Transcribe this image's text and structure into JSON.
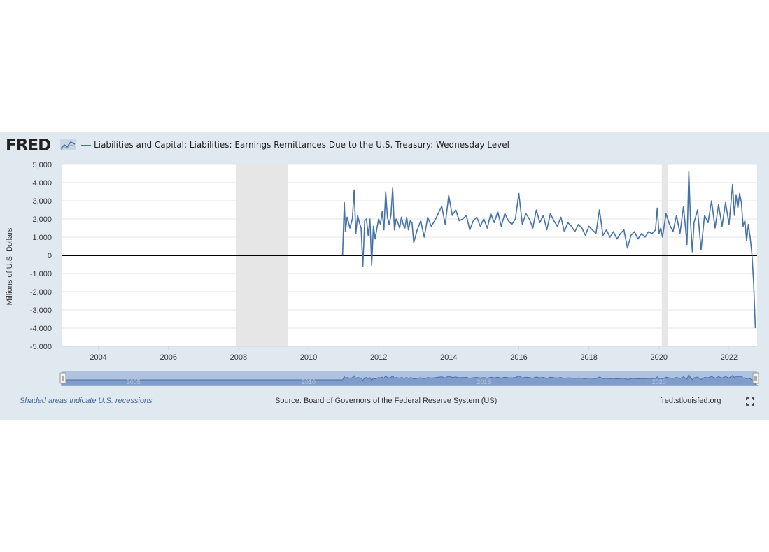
{
  "header": {
    "logo_text": "FRED",
    "title": "Liabilities and Capital: Liabilities: Earnings Remittances Due to the U.S. Treasury: Wednesday Level"
  },
  "footer": {
    "recession_note": "Shaded areas indicate U.S. recessions.",
    "source": "Source: Board of Governors of the Federal Reserve System (US)",
    "url": "fred.stlouisfed.org"
  },
  "colors": {
    "panel": "#e1e9f0",
    "series": "#4572a7",
    "recession": "#e6e6e6",
    "zero_line": "#000000"
  },
  "icons": {
    "logo_mark": "line-graph-icon",
    "fullscreen": "expand-icon"
  },
  "chart_data": {
    "type": "line",
    "ylabel": "Millions of U.S. Dollars",
    "ylim": [
      -5000,
      5000
    ],
    "yticks": [
      5000,
      4000,
      3000,
      2000,
      1000,
      0,
      -1000,
      -2000,
      -3000,
      -4000,
      -5000
    ],
    "ytick_labels": [
      "5,000",
      "4,000",
      "3,000",
      "2,000",
      "1,000",
      "0",
      "-1,000",
      "-2,000",
      "-3,000",
      "-4,000",
      "-5,000"
    ],
    "xlim": [
      2002.95,
      2022.8
    ],
    "xticks": [
      2004,
      2006,
      2008,
      2010,
      2012,
      2014,
      2016,
      2018,
      2020,
      2022
    ],
    "xtick_labels": [
      "2004",
      "2006",
      "2008",
      "2010",
      "2012",
      "2014",
      "2016",
      "2018",
      "2020",
      "2022"
    ],
    "navigator_labels": [
      "2005",
      "2010",
      "2015",
      "2020"
    ],
    "recessions": [
      [
        2007.92,
        2009.42
      ],
      [
        2020.08,
        2020.25
      ]
    ],
    "grid": true,
    "series": [
      {
        "x": [
          2010.97,
          2011.02,
          2011.05,
          2011.1,
          2011.18,
          2011.25,
          2011.3,
          2011.35,
          2011.4,
          2011.45,
          2011.5,
          2011.55,
          2011.6,
          2011.65,
          2011.7,
          2011.75,
          2011.8,
          2011.85,
          2011.9,
          2011.95,
          2012.0,
          2012.05,
          2012.1,
          2012.15,
          2012.2,
          2012.25,
          2012.3,
          2012.35,
          2012.4,
          2012.45,
          2012.5,
          2012.55,
          2012.6,
          2012.65,
          2012.7,
          2012.75,
          2012.8,
          2012.85,
          2012.9,
          2012.95,
          2013.0,
          2013.1,
          2013.2,
          2013.3,
          2013.4,
          2013.5,
          2013.6,
          2013.7,
          2013.8,
          2013.9,
          2014.0,
          2014.1,
          2014.2,
          2014.3,
          2014.4,
          2014.5,
          2014.6,
          2014.7,
          2014.8,
          2014.9,
          2015.0,
          2015.1,
          2015.2,
          2015.3,
          2015.4,
          2015.5,
          2015.6,
          2015.7,
          2015.8,
          2015.9,
          2016.0,
          2016.1,
          2016.2,
          2016.3,
          2016.4,
          2016.5,
          2016.6,
          2016.7,
          2016.8,
          2016.9,
          2017.0,
          2017.1,
          2017.2,
          2017.3,
          2017.4,
          2017.5,
          2017.6,
          2017.7,
          2017.8,
          2017.9,
          2018.0,
          2018.1,
          2018.2,
          2018.3,
          2018.4,
          2018.5,
          2018.6,
          2018.7,
          2018.8,
          2018.9,
          2019.0,
          2019.1,
          2019.2,
          2019.3,
          2019.4,
          2019.5,
          2019.6,
          2019.7,
          2019.8,
          2019.9,
          2019.95,
          2020.0,
          2020.05,
          2020.1,
          2020.2,
          2020.3,
          2020.4,
          2020.5,
          2020.6,
          2020.7,
          2020.8,
          2020.85,
          2020.9,
          2020.95,
          2021.0,
          2021.1,
          2021.2,
          2021.3,
          2021.4,
          2021.5,
          2021.6,
          2021.7,
          2021.8,
          2021.9,
          2022.0,
          2022.1,
          2022.15,
          2022.2,
          2022.25,
          2022.3,
          2022.35,
          2022.4,
          2022.45,
          2022.5,
          2022.55,
          2022.6,
          2022.65,
          2022.7,
          2022.75
        ],
        "values": [
          0,
          2900,
          1300,
          2100,
          1500,
          2000,
          3600,
          1200,
          2200,
          1800,
          1500,
          -600,
          1900,
          2000,
          1100,
          2000,
          -550,
          1600,
          900,
          1500,
          2000,
          1700,
          2400,
          1400,
          3500,
          2100,
          1700,
          2200,
          3700,
          1400,
          2000,
          1800,
          1500,
          2100,
          1700,
          1500,
          2100,
          1400,
          1900,
          1800,
          700,
          1400,
          1900,
          1000,
          2100,
          1600,
          1900,
          2300,
          2700,
          1700,
          3300,
          2200,
          2500,
          1900,
          2000,
          2200,
          1400,
          1900,
          2100,
          1600,
          2000,
          1500,
          2300,
          1800,
          2400,
          1600,
          2300,
          1900,
          1700,
          2000,
          3400,
          1700,
          2300,
          2000,
          1500,
          2500,
          1800,
          2200,
          1400,
          2300,
          1900,
          1600,
          2100,
          1300,
          1800,
          1600,
          1300,
          1700,
          1500,
          1100,
          1600,
          1400,
          1200,
          2500,
          1100,
          1400,
          1000,
          1300,
          900,
          1200,
          1400,
          400,
          1100,
          1300,
          900,
          1200,
          1000,
          1300,
          1200,
          1400,
          2600,
          1200,
          1500,
          1000,
          2300,
          1700,
          1300,
          2200,
          1200,
          2700,
          600,
          4600,
          1800,
          200,
          1800,
          2500,
          300,
          2200,
          1800,
          3000,
          1500,
          2800,
          1600,
          2900,
          1700,
          3900,
          2200,
          3300,
          2600,
          3400,
          2900,
          1600,
          1900,
          800,
          1700,
          1000,
          100,
          -1500,
          -4000
        ]
      }
    ]
  }
}
